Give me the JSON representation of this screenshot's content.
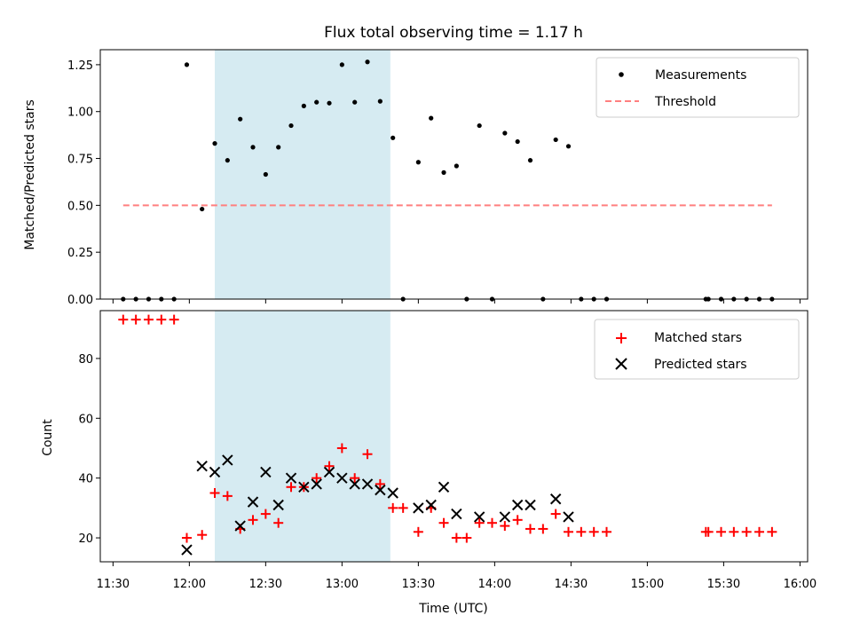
{
  "chart_data": [
    {
      "type": "scatter",
      "title": "Flux total observing time = 1.17 h",
      "ylabel": "Matched/Predicted stars",
      "xlabel": "",
      "xlim": [
        "11:25",
        "16:03"
      ],
      "ylim": [
        0,
        1.33
      ],
      "yticks": [
        0.0,
        0.25,
        0.5,
        0.75,
        1.0,
        1.25
      ],
      "ytick_labels": [
        "0.00",
        "0.25",
        "0.50",
        "0.75",
        "1.00",
        "1.25"
      ],
      "shaded_interval": {
        "start": "12:10",
        "end": "13:19",
        "color": "#add8e6"
      },
      "legend": {
        "position": "top-right",
        "entries": [
          "Measurements",
          "Threshold"
        ]
      },
      "series": [
        {
          "name": "Measurements",
          "color": "#000000",
          "marker": "dot",
          "points": [
            [
              "11:34",
              0
            ],
            [
              "11:39",
              0
            ],
            [
              "11:44",
              0
            ],
            [
              "11:49",
              0
            ],
            [
              "11:54",
              0
            ],
            [
              "11:59",
              1.25
            ],
            [
              "12:05",
              0.48
            ],
            [
              "12:10",
              0.83
            ],
            [
              "12:15",
              0.74
            ],
            [
              "12:20",
              0.96
            ],
            [
              "12:25",
              0.81
            ],
            [
              "12:30",
              0.665
            ],
            [
              "12:35",
              0.81
            ],
            [
              "12:40",
              0.925
            ],
            [
              "12:45",
              1.03
            ],
            [
              "12:50",
              1.05
            ],
            [
              "12:55",
              1.045
            ],
            [
              "13:00",
              1.25
            ],
            [
              "13:05",
              1.05
            ],
            [
              "13:10",
              1.265
            ],
            [
              "13:15",
              1.055
            ],
            [
              "13:20",
              0.86
            ],
            [
              "13:24",
              0
            ],
            [
              "13:30",
              0.73
            ],
            [
              "13:35",
              0.965
            ],
            [
              "13:40",
              0.675
            ],
            [
              "13:45",
              0.71
            ],
            [
              "13:49",
              0
            ],
            [
              "13:54",
              0.925
            ],
            [
              "13:59",
              0
            ],
            [
              "14:04",
              0.885
            ],
            [
              "14:09",
              0.84
            ],
            [
              "14:14",
              0.74
            ],
            [
              "14:19",
              0
            ],
            [
              "14:24",
              0.85
            ],
            [
              "14:29",
              0.815
            ],
            [
              "14:34",
              0
            ],
            [
              "14:39",
              0
            ],
            [
              "14:44",
              0
            ],
            [
              "15:23",
              0
            ],
            [
              "15:24",
              0
            ],
            [
              "15:29",
              0
            ],
            [
              "15:34",
              0
            ],
            [
              "15:39",
              0
            ],
            [
              "15:44",
              0
            ],
            [
              "15:49",
              0
            ]
          ]
        },
        {
          "name": "Threshold",
          "color": "#ff7f7f",
          "style": "dashed",
          "points": [
            [
              "11:34",
              0.5
            ],
            [
              "15:49",
              0.5
            ]
          ]
        }
      ]
    },
    {
      "type": "scatter",
      "title": "",
      "xlabel": "Time (UTC)",
      "ylabel": "Count",
      "xlim": [
        "11:25",
        "16:03"
      ],
      "ylim": [
        12,
        96
      ],
      "yticks": [
        20,
        40,
        60,
        80
      ],
      "ytick_labels": [
        "20",
        "40",
        "60",
        "80"
      ],
      "xticks": [
        "11:30",
        "12:00",
        "12:30",
        "13:00",
        "13:30",
        "14:00",
        "14:30",
        "15:00",
        "15:30",
        "16:00"
      ],
      "xtick_labels": [
        "11:30",
        "12:00",
        "12:30",
        "13:00",
        "13:30",
        "14:00",
        "14:30",
        "15:00",
        "15:30",
        "16:00"
      ],
      "shaded_interval": {
        "start": "12:10",
        "end": "13:19",
        "color": "#add8e6"
      },
      "legend": {
        "position": "top-right",
        "entries": [
          "Matched stars",
          "Predicted stars"
        ]
      },
      "series": [
        {
          "name": "Matched stars",
          "color": "#ff0000",
          "marker": "plus",
          "points": [
            [
              "11:34",
              93
            ],
            [
              "11:39",
              93
            ],
            [
              "11:44",
              93
            ],
            [
              "11:49",
              93
            ],
            [
              "11:54",
              93
            ],
            [
              "11:59",
              20
            ],
            [
              "12:05",
              21
            ],
            [
              "12:10",
              35
            ],
            [
              "12:15",
              34
            ],
            [
              "12:20",
              23
            ],
            [
              "12:25",
              26
            ],
            [
              "12:30",
              28
            ],
            [
              "12:35",
              25
            ],
            [
              "12:40",
              37
            ],
            [
              "12:45",
              37
            ],
            [
              "12:50",
              40
            ],
            [
              "12:55",
              44
            ],
            [
              "13:00",
              50
            ],
            [
              "13:05",
              40
            ],
            [
              "13:10",
              48
            ],
            [
              "13:15",
              38
            ],
            [
              "13:20",
              30
            ],
            [
              "13:24",
              30
            ],
            [
              "13:30",
              22
            ],
            [
              "13:35",
              30
            ],
            [
              "13:40",
              25
            ],
            [
              "13:45",
              20
            ],
            [
              "13:49",
              20
            ],
            [
              "13:54",
              25
            ],
            [
              "13:59",
              25
            ],
            [
              "14:04",
              24
            ],
            [
              "14:09",
              26
            ],
            [
              "14:14",
              23
            ],
            [
              "14:19",
              23
            ],
            [
              "14:24",
              28
            ],
            [
              "14:29",
              22
            ],
            [
              "14:34",
              22
            ],
            [
              "14:39",
              22
            ],
            [
              "14:44",
              22
            ],
            [
              "15:23",
              22
            ],
            [
              "15:24",
              22
            ],
            [
              "15:29",
              22
            ],
            [
              "15:34",
              22
            ],
            [
              "15:39",
              22
            ],
            [
              "15:44",
              22
            ],
            [
              "15:49",
              22
            ]
          ]
        },
        {
          "name": "Predicted stars",
          "color": "#000000",
          "marker": "x",
          "points": [
            [
              "11:59",
              16
            ],
            [
              "12:05",
              44
            ],
            [
              "12:10",
              42
            ],
            [
              "12:15",
              46
            ],
            [
              "12:20",
              24
            ],
            [
              "12:25",
              32
            ],
            [
              "12:30",
              42
            ],
            [
              "12:35",
              31
            ],
            [
              "12:40",
              40
            ],
            [
              "12:45",
              37
            ],
            [
              "12:50",
              38
            ],
            [
              "12:55",
              42
            ],
            [
              "13:00",
              40
            ],
            [
              "13:05",
              38
            ],
            [
              "13:10",
              38
            ],
            [
              "13:15",
              36
            ],
            [
              "13:20",
              35
            ],
            [
              "13:30",
              30
            ],
            [
              "13:35",
              31
            ],
            [
              "13:40",
              37
            ],
            [
              "13:45",
              28
            ],
            [
              "13:54",
              27
            ],
            [
              "14:04",
              27
            ],
            [
              "14:09",
              31
            ],
            [
              "14:14",
              31
            ],
            [
              "14:24",
              33
            ],
            [
              "14:29",
              27
            ]
          ]
        }
      ]
    }
  ]
}
